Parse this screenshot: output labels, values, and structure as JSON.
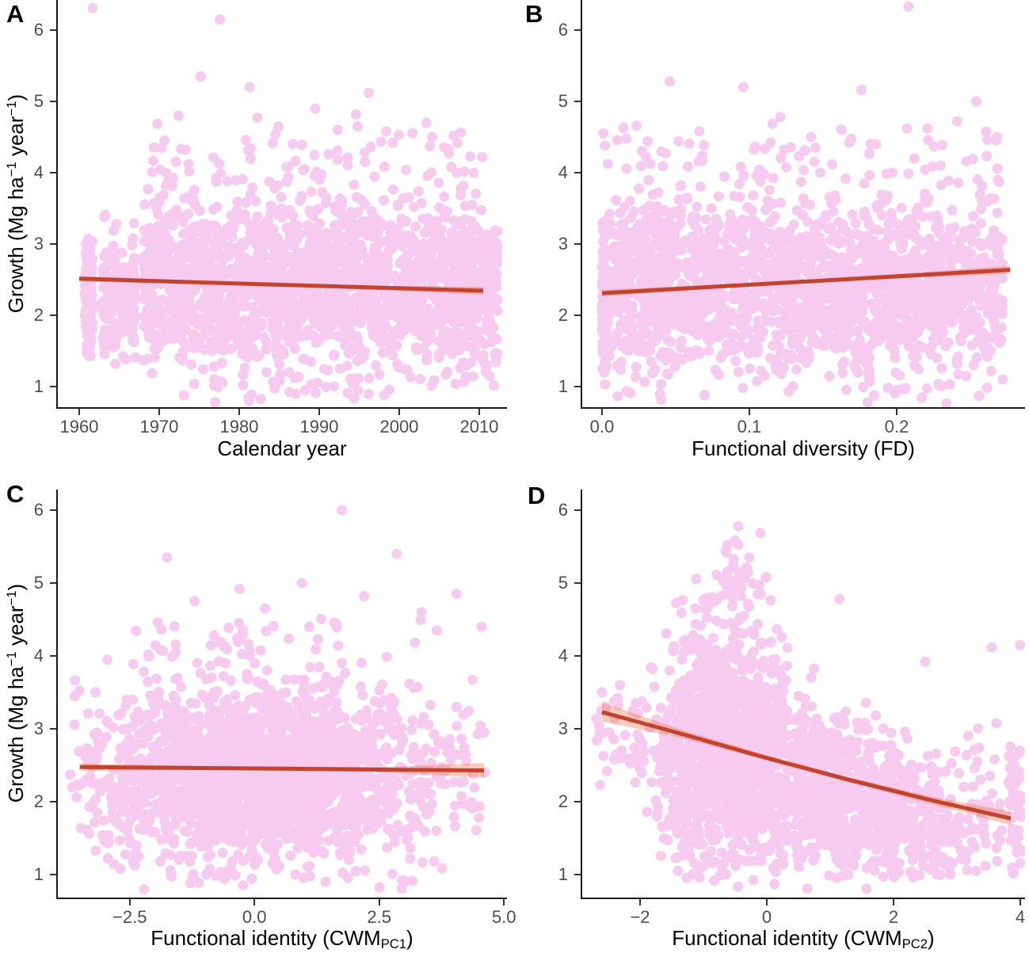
{
  "figure": {
    "background": "#ffffff"
  },
  "colors": {
    "point": "#f7caef",
    "trend_line": "#c2442e",
    "ci_band": "rgba(233,110,55,0.34)",
    "axis_line": "#1a1a1a",
    "tick_mark": "#333333",
    "tick_label": "#4d4d4d",
    "panel_letter": "#000000",
    "axis_title": "#000000"
  },
  "chart_data": [
    {
      "type": "scatter",
      "panel_letter": "A",
      "xlabel_parts": [
        {
          "t": "Calendar year"
        }
      ],
      "ylabel_parts": [
        {
          "t": "Growth (Mg ha"
        },
        {
          "sup": "−1"
        },
        {
          "t": " year"
        },
        {
          "sup": "−1"
        },
        {
          "t": ")"
        }
      ],
      "x_domain": [
        1957.33,
        2013.47
      ],
      "y_domain": [
        0.711,
        6.422
      ],
      "x_ticks": [
        {
          "v": 1960,
          "label": "1960"
        },
        {
          "v": 1970,
          "label": "1970"
        },
        {
          "v": 1980,
          "label": "1980"
        },
        {
          "v": 1990,
          "label": "1990"
        },
        {
          "v": 2000,
          "label": "2000"
        },
        {
          "v": 2010,
          "label": "2010"
        }
      ],
      "y_ticks": [
        {
          "v": 1,
          "label": "1"
        },
        {
          "v": 2,
          "label": "2"
        },
        {
          "v": 3,
          "label": "3"
        },
        {
          "v": 4,
          "label": "4"
        },
        {
          "v": 5,
          "label": "5"
        },
        {
          "v": 6,
          "label": "6"
        }
      ],
      "trend": {
        "samples": [
          [
            1960.0,
            2.513,
            2.475,
            2.551
          ],
          [
            1972.6,
            2.47,
            2.444,
            2.496
          ],
          [
            1985.2,
            2.428,
            2.406,
            2.45
          ],
          [
            1997.8,
            2.386,
            2.358,
            2.414
          ],
          [
            2010.5,
            2.344,
            2.289,
            2.399
          ]
        ]
      },
      "scatter": {
        "seed": 1077,
        "clusters": [
          {
            "n": 170,
            "x": {
              "type": "normal",
              "mean": 1961.2,
              "sd": 0.25
            },
            "xclip": [
              1960.7,
              1961.8
            ],
            "y": {
              "mean": 2.25,
              "sd": 0.45
            },
            "yclip": [
              1.42,
              3.08
            ]
          },
          {
            "n": 50,
            "x": {
              "type": "normal",
              "mean": 1963.2,
              "sd": 0.18
            },
            "xclip": [
              1962.8,
              1963.7
            ],
            "y": {
              "mean": 2.3,
              "sd": 0.5
            },
            "yclip": [
              1.3,
              3.5
            ]
          },
          {
            "n": 48,
            "x": {
              "type": "normal",
              "mean": 1964.4,
              "sd": 0.18
            },
            "xclip": [
              1964.0,
              1964.9
            ],
            "y": {
              "mean": 2.25,
              "sd": 0.5
            },
            "yclip": [
              1.3,
              3.5
            ]
          },
          {
            "n": 42,
            "x": {
              "type": "normal",
              "mean": 1965.6,
              "sd": 0.18
            },
            "xclip": [
              1965.2,
              1966.1
            ],
            "y": {
              "mean": 2.3,
              "sd": 0.48
            },
            "yclip": [
              1.35,
              3.4
            ]
          },
          {
            "n": 38,
            "x": {
              "type": "normal",
              "mean": 1966.8,
              "sd": 0.18
            },
            "xclip": [
              1966.4,
              1967.3
            ],
            "y": {
              "mean": 2.25,
              "sd": 0.48
            },
            "yclip": [
              1.4,
              3.35
            ]
          },
          {
            "n": 1900,
            "x": {
              "type": "uniform",
              "min": 1968,
              "max": 2012.3
            },
            "y": {
              "mean": 2.42,
              "sd": 0.6
            },
            "yclip": [
              0.95,
              4.05
            ]
          },
          {
            "n": 65,
            "x": {
              "type": "uniform",
              "min": 1969,
              "max": 2009
            },
            "y": {
              "mean": 4.15,
              "sd": 0.3
            },
            "yclip": [
              3.85,
              5.2
            ]
          },
          {
            "n": 22,
            "x": {
              "type": "uniform",
              "min": 1970,
              "max": 2002
            },
            "y": {
              "mean": 0.93,
              "sd": 0.09
            },
            "yclip": [
              0.74,
              1.08
            ]
          }
        ],
        "outliers": [
          [
            1961.7,
            6.31
          ],
          [
            1977.6,
            6.15
          ],
          [
            1975.2,
            5.35
          ],
          [
            1981.3,
            5.2
          ],
          [
            1996.2,
            5.12
          ],
          [
            1989.5,
            4.9
          ],
          [
            2003.4,
            4.7
          ],
          [
            1972.4,
            4.8
          ],
          [
            2006.8,
            4.52
          ],
          [
            2010.4,
            4.22
          ],
          [
            1992.3,
            4.6
          ],
          [
            1984.9,
            4.65
          ],
          [
            1999.2,
            4.42
          ],
          [
            1970.3,
            4.35
          ],
          [
            2008.9,
            2.9
          ],
          [
            2011.5,
            1.75
          ],
          [
            1977.0,
            0.78
          ]
        ]
      }
    },
    {
      "type": "scatter",
      "panel_letter": "B",
      "xlabel_parts": [
        {
          "t": "Functional diversity (FD)"
        }
      ],
      "ylabel_parts": null,
      "x_domain": [
        -0.0134,
        0.2871
      ],
      "y_domain": [
        0.711,
        6.422
      ],
      "x_ticks": [
        {
          "v": 0.0,
          "label": "0.0"
        },
        {
          "v": 0.1,
          "label": "0.1"
        },
        {
          "v": 0.2,
          "label": "0.2"
        }
      ],
      "y_ticks": [
        {
          "v": 1,
          "label": "1"
        },
        {
          "v": 2,
          "label": "2"
        },
        {
          "v": 3,
          "label": "3"
        },
        {
          "v": 4,
          "label": "4"
        },
        {
          "v": 5,
          "label": "5"
        },
        {
          "v": 6,
          "label": "6"
        }
      ],
      "trend": {
        "samples": [
          [
            0.0,
            2.31,
            2.265,
            2.355
          ],
          [
            0.07,
            2.393,
            2.363,
            2.423
          ],
          [
            0.14,
            2.475,
            2.448,
            2.502
          ],
          [
            0.21,
            2.558,
            2.525,
            2.591
          ],
          [
            0.277,
            2.638,
            2.583,
            2.693
          ]
        ]
      },
      "scatter": {
        "seed": 2154,
        "clusters": [
          {
            "n": 150,
            "x": {
              "type": "normal",
              "mean": 0.001,
              "sd": 0.0015
            },
            "xclip": [
              0.0,
              0.004
            ],
            "y": {
              "mean": 2.1,
              "sd": 0.5
            },
            "yclip": [
              1.0,
              3.3
            ]
          },
          {
            "n": 2000,
            "x": {
              "type": "uniform",
              "min": 0.002,
              "max": 0.272
            },
            "y": {
              "mean": 2.42,
              "sd": 0.6
            },
            "yclip": [
              0.95,
              4.0
            ]
          },
          {
            "n": 70,
            "x": {
              "type": "uniform",
              "min": 0.004,
              "max": 0.27
            },
            "y": {
              "mean": 4.15,
              "sd": 0.3
            },
            "yclip": [
              3.85,
              5.25
            ]
          },
          {
            "n": 22,
            "x": {
              "type": "uniform",
              "min": 0.01,
              "max": 0.26
            },
            "y": {
              "mean": 0.93,
              "sd": 0.09
            },
            "yclip": [
              0.75,
              1.08
            ]
          }
        ],
        "outliers": [
          [
            0.208,
            6.33
          ],
          [
            0.046,
            5.28
          ],
          [
            0.096,
            5.2
          ],
          [
            0.176,
            5.16
          ],
          [
            0.254,
            5.0
          ],
          [
            0.001,
            4.55
          ],
          [
            0.002,
            4.38
          ],
          [
            0.031,
            4.44
          ],
          [
            0.121,
            4.78
          ],
          [
            0.221,
            4.62
          ],
          [
            0.142,
            4.5
          ],
          [
            0.066,
            4.58
          ],
          [
            0.186,
            4.4
          ],
          [
            0.241,
            4.72
          ],
          [
            0.268,
            4.5
          ],
          [
            0.258,
            2.6
          ],
          [
            0.2,
            0.95
          ]
        ]
      }
    },
    {
      "type": "scatter",
      "panel_letter": "C",
      "xlabel_parts": [
        {
          "t": "Functional identity (CWM"
        },
        {
          "sub": "PC1"
        },
        {
          "t": ")"
        }
      ],
      "ylabel_parts": [
        {
          "t": "Growth (Mg ha"
        },
        {
          "sup": "−1"
        },
        {
          "t": " year"
        },
        {
          "sup": "−1"
        },
        {
          "t": ")"
        }
      ],
      "x_domain": [
        -3.94,
        5.06
      ],
      "y_domain": [
        0.685,
        6.283
      ],
      "x_ticks": [
        {
          "v": -2.5,
          "label": "−2.5"
        },
        {
          "v": 0.0,
          "label": "0.0"
        },
        {
          "v": 2.5,
          "label": "2.5"
        },
        {
          "v": 5.0,
          "label": "5.0"
        }
      ],
      "y_ticks": [
        {
          "v": 1,
          "label": "1"
        },
        {
          "v": 2,
          "label": "2"
        },
        {
          "v": 3,
          "label": "3"
        },
        {
          "v": 4,
          "label": "4"
        },
        {
          "v": 5,
          "label": "5"
        },
        {
          "v": 6,
          "label": "6"
        }
      ],
      "trend": {
        "samples": [
          [
            -3.5,
            2.475,
            2.425,
            2.525
          ],
          [
            -1.48,
            2.464,
            2.434,
            2.494
          ],
          [
            0.55,
            2.453,
            2.425,
            2.481
          ],
          [
            2.58,
            2.441,
            2.406,
            2.476
          ],
          [
            4.6,
            2.43,
            2.33,
            2.53
          ]
        ]
      },
      "scatter": {
        "seed": 3231,
        "clusters": [
          {
            "n": 1900,
            "x": {
              "type": "normal",
              "mean": 0.2,
              "sd": 1.55
            },
            "xclip": [
              -3.7,
              4.0
            ],
            "y": {
              "mean": 2.38,
              "sd": 0.58
            },
            "yclip": [
              0.95,
              3.9
            ]
          },
          {
            "n": 300,
            "x": {
              "type": "uniform",
              "min": -3.65,
              "max": 4.55
            },
            "y": {
              "mean": 2.4,
              "sd": 0.62
            },
            "yclip": [
              1.0,
              3.85
            ]
          },
          {
            "n": 55,
            "x": {
              "type": "normal",
              "mean": 0.6,
              "sd": 1.5
            },
            "xclip": [
              -2.6,
              4.2
            ],
            "y": {
              "mean": 4.1,
              "sd": 0.28
            },
            "yclip": [
              3.85,
              5.0
            ]
          },
          {
            "n": 18,
            "x": {
              "type": "uniform",
              "min": -2.4,
              "max": 3.4
            },
            "y": {
              "mean": 0.93,
              "sd": 0.08
            },
            "yclip": [
              0.78,
              1.05
            ]
          }
        ],
        "outliers": [
          [
            1.75,
            6.0
          ],
          [
            2.85,
            5.4
          ],
          [
            -1.75,
            5.35
          ],
          [
            0.95,
            5.0
          ],
          [
            4.05,
            4.85
          ],
          [
            -2.95,
            3.95
          ],
          [
            4.55,
            4.4
          ],
          [
            3.35,
            4.6
          ],
          [
            -0.3,
            4.92
          ],
          [
            -1.2,
            4.75
          ],
          [
            2.2,
            4.82
          ],
          [
            4.6,
            2.95
          ],
          [
            4.5,
            1.78
          ],
          [
            4.62,
            2.4
          ],
          [
            -3.6,
            3.45
          ],
          [
            -3.65,
            2.2
          ]
        ]
      }
    },
    {
      "type": "scatter",
      "panel_letter": "D",
      "xlabel_parts": [
        {
          "t": "Functional identity (CWM"
        },
        {
          "sub": "PC2"
        },
        {
          "t": ")"
        }
      ],
      "ylabel_parts": null,
      "x_domain": [
        -2.9125,
        4.075
      ],
      "y_domain": [
        0.685,
        6.283
      ],
      "x_ticks": [
        {
          "v": -2,
          "label": "−2"
        },
        {
          "v": 0,
          "label": "0"
        },
        {
          "v": 2,
          "label": "2"
        },
        {
          "v": 4,
          "label": "4"
        }
      ],
      "y_ticks": [
        {
          "v": 1,
          "label": "1"
        },
        {
          "v": 2,
          "label": "2"
        },
        {
          "v": 3,
          "label": "3"
        },
        {
          "v": 4,
          "label": "4"
        },
        {
          "v": 5,
          "label": "5"
        },
        {
          "v": 6,
          "label": "6"
        }
      ],
      "trend": {
        "samples": [
          [
            -2.6,
            3.23,
            3.1,
            3.36
          ],
          [
            -1.3,
            2.92,
            2.865,
            2.975
          ],
          [
            0.0,
            2.6,
            2.565,
            2.635
          ],
          [
            1.3,
            2.3,
            2.265,
            2.335
          ],
          [
            2.6,
            2.02,
            1.97,
            2.07
          ],
          [
            3.85,
            1.77,
            1.675,
            1.865
          ]
        ]
      },
      "scatter": {
        "seed": 4408,
        "clusters": [
          {
            "n": 1200,
            "x": {
              "type": "normal",
              "mean": -0.7,
              "sd": 0.5
            },
            "xclip": [
              -1.95,
              0.35
            ],
            "y": {
              "mean": 2.75,
              "sd": 0.78
            },
            "yclip": [
              0.95,
              4.85
            ]
          },
          {
            "n": 1000,
            "x": {
              "type": "normal",
              "mean": 1.0,
              "sd": 1.25
            },
            "xclip": [
              -0.35,
              3.95
            ],
            "y": {
              "mean": 2.45,
              "sd": 0.55,
              "slope": -0.28
            },
            "yclip": [
              0.95,
              4.1
            ]
          },
          {
            "n": 40,
            "x": {
              "type": "uniform",
              "min": -2.72,
              "max": -1.95
            },
            "y": {
              "mean": 2.9,
              "sd": 0.4
            },
            "yclip": [
              2.0,
              3.6
            ]
          },
          {
            "n": 42,
            "x": {
              "type": "normal",
              "mean": -0.55,
              "sd": 0.28
            },
            "xclip": [
              -1.15,
              0.1
            ],
            "y": {
              "mean": 5.05,
              "sd": 0.3
            },
            "yclip": [
              4.7,
              5.8
            ]
          },
          {
            "n": 45,
            "x": {
              "type": "uniform",
              "min": 3.82,
              "max": 4.05
            },
            "y": {
              "mean": 1.9,
              "sd": 0.55
            },
            "yclip": [
              0.95,
              2.85
            ]
          },
          {
            "n": 14,
            "x": {
              "type": "uniform",
              "min": -1.5,
              "max": 1.6
            },
            "y": {
              "mean": 0.92,
              "sd": 0.07
            },
            "yclip": [
              0.8,
              1.05
            ]
          }
        ],
        "outliers": [
          [
            -0.45,
            5.78
          ],
          [
            -0.62,
            5.52
          ],
          [
            1.15,
            4.78
          ],
          [
            3.55,
            4.12
          ],
          [
            2.5,
            3.92
          ],
          [
            3.9,
            2.6
          ],
          [
            3.95,
            1.3
          ],
          [
            3.3,
            1.05
          ],
          [
            -1.4,
            1.05
          ],
          [
            -2.6,
            3.5
          ],
          [
            -2.35,
            3.42
          ],
          [
            4.0,
            4.15
          ],
          [
            2.9,
            1.0
          ]
        ]
      }
    }
  ]
}
